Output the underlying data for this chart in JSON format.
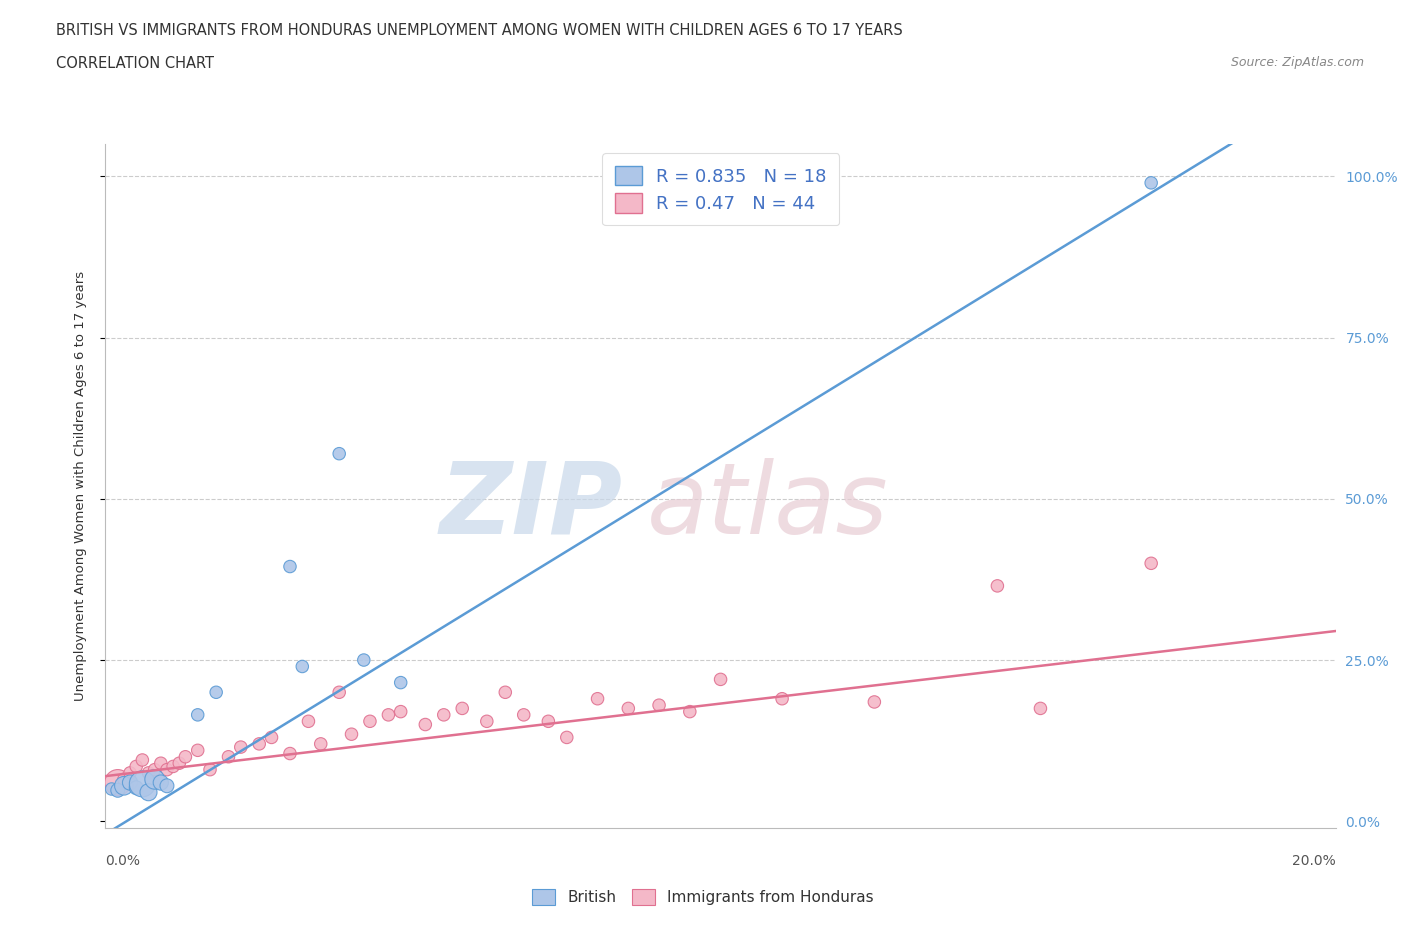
{
  "title_line1": "BRITISH VS IMMIGRANTS FROM HONDURAS UNEMPLOYMENT AMONG WOMEN WITH CHILDREN AGES 6 TO 17 YEARS",
  "title_line2": "CORRELATION CHART",
  "source_text": "Source: ZipAtlas.com",
  "ylabel": "Unemployment Among Women with Children Ages 6 to 17 years",
  "british_R": 0.835,
  "british_N": 18,
  "honduras_R": 0.47,
  "honduras_N": 44,
  "british_color": "#aec6e8",
  "british_line_color": "#5b9bd5",
  "honduras_color": "#f4b8c8",
  "honduras_line_color": "#e07090",
  "legend_text_color": "#4472c4",
  "xlim": [
    0.0,
    0.2
  ],
  "ylim": [
    -0.01,
    1.05
  ],
  "right_yticklabels": [
    "0.0%",
    "25.0%",
    "50.0%",
    "75.0%",
    "100.0%"
  ],
  "british_x": [
    0.001,
    0.002,
    0.003,
    0.004,
    0.005,
    0.006,
    0.007,
    0.008,
    0.009,
    0.01,
    0.015,
    0.018,
    0.03,
    0.032,
    0.038,
    0.042,
    0.048,
    0.17
  ],
  "british_y": [
    0.05,
    0.048,
    0.055,
    0.06,
    0.052,
    0.058,
    0.045,
    0.065,
    0.06,
    0.055,
    0.165,
    0.2,
    0.395,
    0.24,
    0.57,
    0.25,
    0.215,
    0.99
  ],
  "british_sizes": [
    80,
    100,
    180,
    120,
    100,
    350,
    150,
    200,
    120,
    100,
    80,
    80,
    80,
    80,
    80,
    80,
    80,
    80
  ],
  "honduras_x": [
    0.002,
    0.003,
    0.004,
    0.005,
    0.006,
    0.007,
    0.008,
    0.009,
    0.01,
    0.011,
    0.012,
    0.013,
    0.015,
    0.017,
    0.02,
    0.022,
    0.025,
    0.027,
    0.03,
    0.033,
    0.035,
    0.038,
    0.04,
    0.043,
    0.046,
    0.048,
    0.052,
    0.055,
    0.058,
    0.062,
    0.065,
    0.068,
    0.072,
    0.075,
    0.08,
    0.085,
    0.09,
    0.095,
    0.1,
    0.11,
    0.125,
    0.145,
    0.152,
    0.17
  ],
  "honduras_y": [
    0.06,
    0.065,
    0.075,
    0.085,
    0.095,
    0.075,
    0.08,
    0.09,
    0.08,
    0.085,
    0.09,
    0.1,
    0.11,
    0.08,
    0.1,
    0.115,
    0.12,
    0.13,
    0.105,
    0.155,
    0.12,
    0.2,
    0.135,
    0.155,
    0.165,
    0.17,
    0.15,
    0.165,
    0.175,
    0.155,
    0.2,
    0.165,
    0.155,
    0.13,
    0.19,
    0.175,
    0.18,
    0.17,
    0.22,
    0.19,
    0.185,
    0.365,
    0.175,
    0.4
  ],
  "honduras_sizes": [
    350,
    80,
    80,
    80,
    80,
    80,
    80,
    80,
    80,
    80,
    80,
    80,
    80,
    80,
    80,
    80,
    80,
    80,
    80,
    80,
    80,
    80,
    80,
    80,
    80,
    80,
    80,
    80,
    80,
    80,
    80,
    80,
    80,
    80,
    80,
    80,
    80,
    80,
    80,
    80,
    80,
    80,
    80,
    80
  ]
}
